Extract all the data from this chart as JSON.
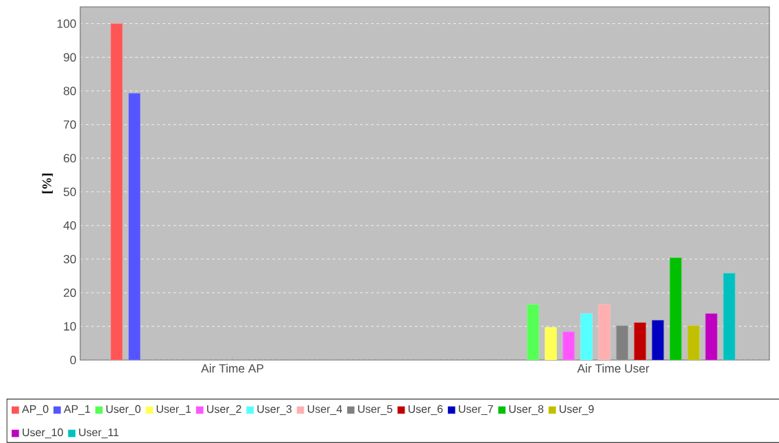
{
  "chart_data": {
    "type": "bar",
    "ylabel": "[%]",
    "categories": [
      "Air Time AP",
      "Air Time User"
    ],
    "series": [
      {
        "name": "AP_0",
        "color": "#ff5555",
        "values": [
          100,
          null
        ]
      },
      {
        "name": "AP_1",
        "color": "#5555ff",
        "values": [
          79.3,
          null
        ]
      },
      {
        "name": "User_0",
        "color": "#55ff55",
        "values": [
          null,
          16.5
        ]
      },
      {
        "name": "User_1",
        "color": "#ffff55",
        "values": [
          null,
          9.7
        ]
      },
      {
        "name": "User_2",
        "color": "#ff55ff",
        "values": [
          null,
          8.4
        ]
      },
      {
        "name": "User_3",
        "color": "#55ffff",
        "values": [
          null,
          13.8
        ]
      },
      {
        "name": "User_4",
        "color": "#ffafaf",
        "values": [
          null,
          16.5
        ]
      },
      {
        "name": "User_5",
        "color": "#808080",
        "values": [
          null,
          10.2
        ]
      },
      {
        "name": "User_6",
        "color": "#c00000",
        "values": [
          null,
          11.1
        ]
      },
      {
        "name": "User_7",
        "color": "#0000c0",
        "values": [
          null,
          11.8
        ]
      },
      {
        "name": "User_8",
        "color": "#00c000",
        "values": [
          null,
          30.4
        ]
      },
      {
        "name": "User_9",
        "color": "#c0c000",
        "values": [
          null,
          10.2
        ]
      },
      {
        "name": "User_10",
        "color": "#c000c0",
        "values": [
          null,
          13.8
        ]
      },
      {
        "name": "User_11",
        "color": "#00c0c0",
        "values": [
          null,
          25.8
        ]
      }
    ],
    "ylim": [
      0,
      105
    ],
    "yticks": [
      0,
      10,
      20,
      30,
      40,
      50,
      60,
      70,
      80,
      90,
      100
    ],
    "grid": "y",
    "legend": "bottom"
  }
}
